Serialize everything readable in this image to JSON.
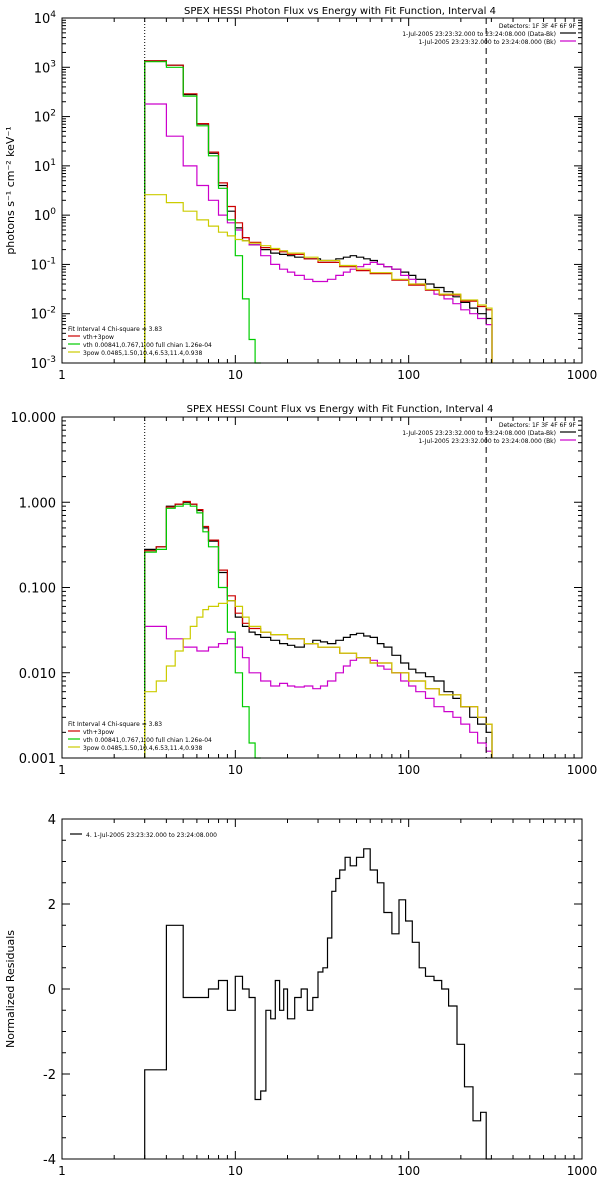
{
  "chart_data": [
    {
      "type": "line",
      "title": "SPEX HESSI Photon Flux vs Energy with Fit Function, Interval 4",
      "xlabel": "",
      "ylabel": "photons s⁻¹ cm⁻² keV⁻¹",
      "xscale": "log",
      "yscale": "log",
      "xlim": [
        1,
        1000
      ],
      "ylim": [
        0.001,
        10000
      ],
      "x_ticks": [
        {
          "value": 1,
          "label": "1"
        },
        {
          "value": 10,
          "label": "10"
        },
        {
          "value": 100,
          "label": "100"
        },
        {
          "value": 1000,
          "label": "1000"
        }
      ],
      "y_ticks": [
        {
          "value": 0.001,
          "base": "10",
          "exp": "-3"
        },
        {
          "value": 0.01,
          "base": "10",
          "exp": "-2"
        },
        {
          "value": 0.1,
          "base": "10",
          "exp": "-1"
        },
        {
          "value": 1,
          "base": "10",
          "exp": "0"
        },
        {
          "value": 10,
          "base": "10",
          "exp": "1"
        },
        {
          "value": 100,
          "base": "10",
          "exp": "2"
        },
        {
          "value": 1000,
          "base": "10",
          "exp": "3"
        },
        {
          "value": 10000,
          "base": "10",
          "exp": "4"
        }
      ],
      "vlines": [
        {
          "x": 3,
          "style": "dotted"
        },
        {
          "x": 280,
          "style": "dashed"
        }
      ],
      "legend_top": [
        {
          "text": "Detectors: 1F 3F 4F 6F 9F",
          "color": ""
        },
        {
          "text": "1-Jul-2005 23:23:32.000 to 23:24:08.000 (Data-Bk)",
          "color": "#000000"
        },
        {
          "text": "1-Jul-2005 23:23:32.000 to 23:24:08.000 (Bk)",
          "color": "#cc00cc"
        }
      ],
      "legend_bottom": [
        {
          "text": "Fit Interval 4   Chi-square = 3.83",
          "color": ""
        },
        {
          "text": "vth+3pow",
          "color": "#cc0000"
        },
        {
          "text": "vth 0.00841,0.767,1.00  full chian 1.26e-04",
          "color": "#00cc00"
        },
        {
          "text": "3pow 0.0485,1.50,10.4,6.53,11.4,0.938",
          "color": "#cccc00"
        }
      ],
      "series": [
        {
          "name": "1-Jul-2005 23:23:32.000 to 23:24:08.000 (Data-Bk)",
          "color": "#000000",
          "x": [
            3,
            4,
            5,
            6,
            7,
            8,
            9,
            10,
            11,
            12,
            14,
            16,
            18,
            20,
            22,
            25,
            28,
            31,
            34,
            38,
            42,
            46,
            50,
            55,
            60,
            66,
            72,
            80,
            90,
            100,
            110,
            125,
            140,
            160,
            180,
            200,
            225,
            250,
            280
          ],
          "y": [
            1350,
            1100,
            280,
            70,
            18,
            4,
            1.2,
            0.55,
            0.3,
            0.25,
            0.2,
            0.17,
            0.16,
            0.15,
            0.14,
            0.13,
            0.13,
            0.12,
            0.12,
            0.13,
            0.14,
            0.15,
            0.14,
            0.13,
            0.12,
            0.1,
            0.09,
            0.08,
            0.07,
            0.06,
            0.05,
            0.04,
            0.034,
            0.028,
            0.022,
            0.017,
            0.013,
            0.01,
            0.008
          ]
        },
        {
          "name": "1-Jul-2005 23:23:32.000 to 23:24:08.000 (Bk)",
          "color": "#cc00cc",
          "x": [
            3,
            4,
            5,
            6,
            7,
            8,
            9,
            10,
            11,
            12,
            14,
            16,
            18,
            20,
            22,
            25,
            28,
            31,
            34,
            38,
            42,
            46,
            50,
            55,
            60,
            66,
            72,
            80,
            90,
            100,
            110,
            125,
            140,
            160,
            180,
            200,
            225,
            250,
            280
          ],
          "y": [
            180,
            40,
            10,
            4,
            2,
            1,
            0.7,
            0.5,
            0.35,
            0.25,
            0.15,
            0.1,
            0.08,
            0.07,
            0.06,
            0.05,
            0.045,
            0.045,
            0.05,
            0.06,
            0.07,
            0.08,
            0.09,
            0.1,
            0.11,
            0.1,
            0.09,
            0.08,
            0.06,
            0.05,
            0.04,
            0.03,
            0.025,
            0.02,
            0.016,
            0.012,
            0.01,
            0.008,
            0.006
          ]
        },
        {
          "name": "vth+3pow",
          "color": "#cc0000",
          "x": [
            3,
            4,
            5,
            6,
            7,
            8,
            9,
            10,
            11,
            12,
            14,
            16,
            18,
            20,
            25,
            30,
            40,
            50,
            60,
            80,
            100,
            125,
            150,
            200,
            250,
            280
          ],
          "y": [
            1350,
            1100,
            290,
            72,
            19,
            4.5,
            1.5,
            0.7,
            0.35,
            0.28,
            0.22,
            0.2,
            0.18,
            0.16,
            0.13,
            0.11,
            0.09,
            0.075,
            0.065,
            0.048,
            0.038,
            0.03,
            0.024,
            0.018,
            0.014,
            0.012
          ]
        },
        {
          "name": "vth 0.00841,0.767,1.00  full chian 1.26e-04",
          "color": "#00cc00",
          "x": [
            3,
            4,
            5,
            6,
            7,
            8,
            9,
            10,
            11,
            12,
            13
          ],
          "y": [
            1300,
            1000,
            260,
            65,
            16,
            3.5,
            0.8,
            0.15,
            0.02,
            0.003,
            0.001
          ]
        },
        {
          "name": "3pow 0.0485,1.50,10.4,6.53,11.4,0.938",
          "color": "#cccc00",
          "x": [
            3,
            4,
            5,
            6,
            7,
            8,
            9,
            10,
            11,
            12,
            14,
            16,
            18,
            20,
            25,
            30,
            40,
            50,
            60,
            80,
            100,
            125,
            150,
            200,
            250,
            280
          ],
          "y": [
            2.6,
            1.8,
            1.2,
            0.8,
            0.6,
            0.45,
            0.38,
            0.32,
            0.3,
            0.27,
            0.24,
            0.21,
            0.19,
            0.17,
            0.14,
            0.12,
            0.095,
            0.08,
            0.068,
            0.05,
            0.04,
            0.031,
            0.025,
            0.019,
            0.015,
            0.013
          ]
        }
      ]
    },
    {
      "type": "line",
      "title": "SPEX HESSI Count Flux vs Energy with Fit Function, Interval 4",
      "xlabel": "",
      "ylabel": "",
      "xscale": "log",
      "yscale": "log",
      "xlim": [
        1,
        1000
      ],
      "ylim": [
        0.001,
        10
      ],
      "x_ticks": [
        {
          "value": 1,
          "label": "1"
        },
        {
          "value": 10,
          "label": "10"
        },
        {
          "value": 100,
          "label": "100"
        },
        {
          "value": 1000,
          "label": "1000"
        }
      ],
      "y_ticks": [
        {
          "value": 0.001,
          "label": "0.001"
        },
        {
          "value": 0.01,
          "label": "0.010"
        },
        {
          "value": 0.1,
          "label": "0.100"
        },
        {
          "value": 1,
          "label": "1.000"
        },
        {
          "value": 10,
          "label": "10.000"
        }
      ],
      "vlines": [
        {
          "x": 3,
          "style": "dotted"
        },
        {
          "x": 280,
          "style": "dashed"
        }
      ],
      "legend_top": [
        {
          "text": "Detectors: 1F 3F 4F 6F 9F",
          "color": ""
        },
        {
          "text": "1-Jul-2005 23:23:32.000 to 23:24:08.000 (Data-Bk)",
          "color": "#000000"
        },
        {
          "text": "1-Jul-2005 23:23:32.000 to 23:24:08.000 (Bk)",
          "color": "#cc00cc"
        }
      ],
      "legend_bottom": [
        {
          "text": "Fit Interval 4   Chi-square = 3.83",
          "color": ""
        },
        {
          "text": "vth+3pow",
          "color": "#cc0000"
        },
        {
          "text": "vth 0.00841,0.767,1.00  full chian 1.26e-04",
          "color": "#00cc00"
        },
        {
          "text": "3pow 0.0485,1.50,10.4,6.53,11.4,0.938",
          "color": "#cccc00"
        }
      ],
      "series": [
        {
          "name": "1-Jul-2005 23:23:32.000 to 23:24:08.000 (Data-Bk)",
          "color": "#000000",
          "x": [
            3,
            3.5,
            4,
            4.5,
            5,
            5.5,
            6,
            6.5,
            7,
            8,
            9,
            10,
            11,
            12,
            13,
            14,
            16,
            18,
            20,
            22,
            25,
            28,
            31,
            34,
            38,
            42,
            46,
            50,
            55,
            60,
            66,
            72,
            80,
            90,
            100,
            110,
            125,
            140,
            160,
            180,
            200,
            225,
            250,
            280
          ],
          "y": [
            0.28,
            0.3,
            0.9,
            0.95,
            1.0,
            0.95,
            0.8,
            0.5,
            0.35,
            0.15,
            0.07,
            0.045,
            0.035,
            0.03,
            0.028,
            0.026,
            0.024,
            0.022,
            0.021,
            0.02,
            0.022,
            0.024,
            0.023,
            0.022,
            0.024,
            0.026,
            0.028,
            0.029,
            0.027,
            0.026,
            0.022,
            0.02,
            0.016,
            0.013,
            0.011,
            0.01,
            0.009,
            0.008,
            0.006,
            0.005,
            0.004,
            0.003,
            0.0025,
            0.002
          ]
        },
        {
          "name": "1-Jul-2005 23:23:32.000 to 23:24:08.000 (Bk)",
          "color": "#cc00cc",
          "x": [
            3,
            4,
            5,
            6,
            7,
            8,
            9,
            10,
            11,
            12,
            14,
            16,
            18,
            20,
            22,
            25,
            28,
            31,
            34,
            38,
            42,
            46,
            50,
            55,
            60,
            66,
            72,
            80,
            90,
            100,
            110,
            125,
            140,
            160,
            180,
            200,
            225,
            250,
            280
          ],
          "y": [
            0.035,
            0.025,
            0.02,
            0.018,
            0.02,
            0.022,
            0.025,
            0.02,
            0.015,
            0.01,
            0.008,
            0.007,
            0.0075,
            0.007,
            0.0068,
            0.007,
            0.0065,
            0.007,
            0.008,
            0.01,
            0.012,
            0.014,
            0.015,
            0.015,
            0.014,
            0.012,
            0.011,
            0.01,
            0.008,
            0.007,
            0.006,
            0.005,
            0.004,
            0.0035,
            0.003,
            0.0025,
            0.002,
            0.0015,
            0.0012
          ]
        },
        {
          "name": "vth+3pow",
          "color": "#cc0000",
          "x": [
            3,
            3.5,
            4,
            4.5,
            5,
            5.5,
            6,
            6.5,
            7,
            8,
            9,
            10,
            11,
            12,
            14,
            16,
            20,
            25,
            30,
            40,
            50,
            60,
            80,
            100,
            125,
            150,
            200,
            250,
            280
          ],
          "y": [
            0.27,
            0.3,
            0.88,
            0.95,
            1.02,
            0.95,
            0.82,
            0.52,
            0.36,
            0.16,
            0.08,
            0.05,
            0.038,
            0.033,
            0.03,
            0.028,
            0.025,
            0.022,
            0.02,
            0.017,
            0.015,
            0.013,
            0.01,
            0.008,
            0.0065,
            0.0055,
            0.004,
            0.003,
            0.0025
          ]
        },
        {
          "name": "vth 0.00841,0.767,1.00  full chian 1.26e-04",
          "color": "#00cc00",
          "x": [
            3,
            3.5,
            4,
            4.5,
            5,
            5.5,
            6,
            6.5,
            7,
            8,
            9,
            10,
            11,
            12,
            13
          ],
          "y": [
            0.26,
            0.28,
            0.85,
            0.9,
            0.95,
            0.9,
            0.75,
            0.45,
            0.3,
            0.1,
            0.03,
            0.01,
            0.004,
            0.0015,
            0.001
          ]
        },
        {
          "name": "3pow 0.0485,1.50,10.4,6.53,11.4,0.938",
          "color": "#cccc00",
          "x": [
            3,
            3.5,
            4,
            4.5,
            5,
            5.5,
            6,
            6.5,
            7,
            8,
            9,
            10,
            11,
            12,
            14,
            16,
            20,
            25,
            30,
            40,
            50,
            60,
            80,
            100,
            125,
            150,
            200,
            250,
            280
          ],
          "y": [
            0.006,
            0.008,
            0.012,
            0.018,
            0.025,
            0.035,
            0.045,
            0.055,
            0.06,
            0.065,
            0.07,
            0.06,
            0.045,
            0.035,
            0.03,
            0.028,
            0.025,
            0.022,
            0.02,
            0.017,
            0.015,
            0.013,
            0.01,
            0.008,
            0.0065,
            0.0055,
            0.004,
            0.003,
            0.0025
          ]
        }
      ]
    },
    {
      "type": "line",
      "title": "",
      "xlabel": "",
      "ylabel": "Normalized Residuals",
      "xscale": "log",
      "yscale": "linear",
      "xlim": [
        1,
        1000
      ],
      "ylim": [
        -4,
        4
      ],
      "x_ticks": [
        {
          "value": 1,
          "label": "1"
        },
        {
          "value": 10,
          "label": "10"
        },
        {
          "value": 100,
          "label": "100"
        },
        {
          "value": 1000,
          "label": "1000"
        }
      ],
      "y_ticks": [
        {
          "value": -4,
          "label": "-4"
        },
        {
          "value": -2,
          "label": "-2"
        },
        {
          "value": 0,
          "label": "0"
        },
        {
          "value": 2,
          "label": "2"
        },
        {
          "value": 4,
          "label": "4"
        }
      ],
      "legend_top": [
        {
          "text": "4.  1-Jul-2005 23:23:32.000 to 23:24:08.000",
          "color": "#000000"
        }
      ],
      "series": [
        {
          "name": "4.  1-Jul-2005 23:23:32.000 to 23:24:08.000",
          "color": "#000000",
          "x": [
            3,
            4,
            5,
            6,
            7,
            8,
            9,
            10,
            11,
            12,
            13,
            14,
            15,
            16,
            17,
            18,
            19,
            20,
            22,
            24,
            26,
            28,
            30,
            32,
            34,
            36,
            38,
            40,
            43,
            46,
            50,
            55,
            60,
            66,
            72,
            80,
            88,
            96,
            105,
            115,
            125,
            140,
            155,
            170,
            190,
            210,
            235,
            260,
            280
          ],
          "y": [
            -1.9,
            1.5,
            -0.2,
            -0.2,
            0,
            0.2,
            -0.5,
            0.3,
            0,
            -0.2,
            -2.6,
            -2.4,
            -0.5,
            -0.7,
            0.2,
            -0.5,
            0,
            -0.7,
            -0.2,
            0,
            -0.5,
            -0.2,
            0.4,
            0.5,
            1.2,
            2.3,
            2.6,
            2.8,
            3.1,
            2.9,
            3.1,
            3.3,
            2.8,
            2.5,
            1.8,
            1.3,
            2.1,
            1.6,
            1.1,
            0.5,
            0.3,
            0.2,
            0,
            -0.4,
            -1.3,
            -2.3,
            -3.1,
            -2.9,
            -4
          ]
        }
      ]
    }
  ]
}
